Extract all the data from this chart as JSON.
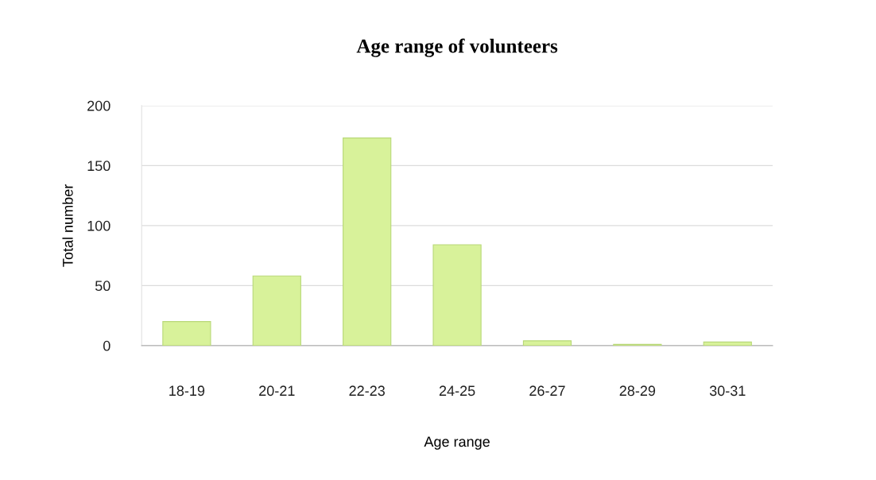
{
  "chart_data": {
    "type": "bar",
    "title": "Age range of volunteers",
    "xlabel": "Age range",
    "ylabel": "Total number",
    "categories": [
      "18-19",
      "20-21",
      "22-23",
      "24-25",
      "26-27",
      "28-29",
      "30-31"
    ],
    "values": [
      20,
      58,
      173,
      84,
      4,
      1,
      3
    ],
    "color": "#d8f29a",
    "ylim": [
      0,
      200
    ],
    "yticks": [
      0,
      50,
      100,
      150,
      200
    ],
    "grid": "y"
  }
}
